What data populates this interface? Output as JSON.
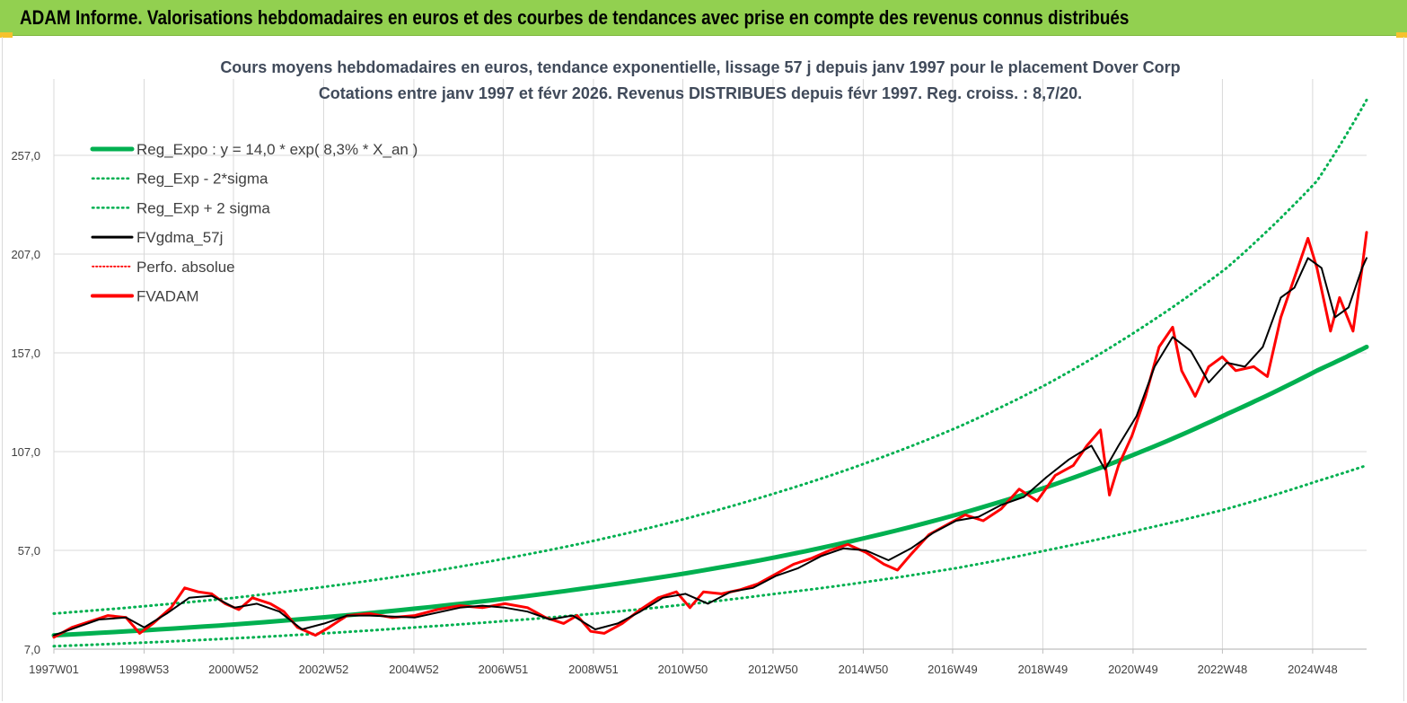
{
  "header": {
    "title": "ADAM Informe. Valorisations hebdomadaires en euros et des courbes de tendances avec prise en compte des revenus connus distribués"
  },
  "colors": {
    "header_bg": "#92d050",
    "reg_expo": "#00b050",
    "fv_adam": "#ff0000",
    "fvgdma": "#000000",
    "perfo": "#ff0000",
    "grid": "#d9d9d9"
  },
  "chart_data": {
    "type": "line",
    "title": "Cours moyens hebdomadaires en euros, tendance exponentielle, lissage 57 j depuis janv 1997 pour le placement Dover Corp",
    "subtitle": "Cotations entre janv 1997 et févr 2026. Revenus DISTRIBUES depuis févr 1997. Reg. croiss. : 8,7/20.",
    "xlabel": "",
    "ylabel": "",
    "x_range": [
      "1997W01",
      "2026W07"
    ],
    "ylim": [
      7.0,
      282.0
    ],
    "y_ticks": [
      "7,0",
      "57,0",
      "107,0",
      "157,0",
      "207,0",
      "257,0"
    ],
    "x_ticks": [
      "1997W01",
      "1998W53",
      "2000W52",
      "2002W52",
      "2004W52",
      "2006W51",
      "2008W51",
      "2010W50",
      "2012W50",
      "2014W50",
      "2016W49",
      "2018W49",
      "2020W49",
      "2022W48",
      "2024W48"
    ],
    "grid": true,
    "legend_position": "top-left",
    "legend": [
      {
        "label": "Reg_Expo : y = 14,0 * exp( 8,3% *  X_an )",
        "color": "#00b050",
        "style": "solid-thick"
      },
      {
        "label": "Reg_Exp - 2*sigma",
        "color": "#00b050",
        "style": "dotted"
      },
      {
        "label": "Reg_Exp + 2 sigma",
        "color": "#00b050",
        "style": "dotted"
      },
      {
        "label": "FVgdma_57j",
        "color": "#000000",
        "style": "solid"
      },
      {
        "label": "Perfo. absolue",
        "color": "#ff0000",
        "style": "dotted"
      },
      {
        "label": "FVADAM",
        "color": "#ff0000",
        "style": "solid-thick"
      }
    ],
    "trend": {
      "coef": 14.0,
      "growth_pct": 8.3
    },
    "series": [
      {
        "name": "Reg_Expo : y = 14,0 * exp( 8,3% *  X_an )",
        "x": [
          1997.0,
          2001.0,
          2005.0,
          2009.0,
          2013.0,
          2017.0,
          2019.0,
          2021.0,
          2023.0,
          2025.0,
          2026.1
        ],
        "y": [
          14.0,
          19.5,
          27.5,
          38.5,
          53.5,
          75.0,
          89.0,
          106.0,
          126.0,
          148.0,
          160.0
        ]
      },
      {
        "name": "Reg_Exp - 2*sigma",
        "x": [
          1997.0,
          2001.0,
          2005.0,
          2009.0,
          2013.0,
          2017.0,
          2019.0,
          2021.0,
          2023.0,
          2025.0,
          2026.1
        ],
        "y": [
          8.5,
          12.5,
          18.0,
          25.0,
          35.0,
          48.0,
          57.0,
          67.0,
          78.0,
          92.0,
          100.0
        ]
      },
      {
        "name": "Reg_Exp + 2 sigma",
        "x": [
          1997.0,
          2001.0,
          2005.0,
          2009.0,
          2013.0,
          2017.0,
          2019.0,
          2021.0,
          2023.0,
          2025.0,
          2026.1
        ],
        "y": [
          25.0,
          33.0,
          45.0,
          62.0,
          86.0,
          119.0,
          141.0,
          168.0,
          200.0,
          244.0,
          285.0
        ]
      },
      {
        "name": "FVgdma_57j",
        "x": [
          1997.0,
          1997.5,
          1998.0,
          1998.6,
          1999.0,
          1999.5,
          2000.0,
          2000.5,
          2001.0,
          2001.5,
          2002.0,
          2002.5,
          2003.0,
          2003.5,
          2004.0,
          2005.0,
          2006.0,
          2006.5,
          2007.0,
          2007.5,
          2008.0,
          2008.5,
          2009.0,
          2009.5,
          2010.0,
          2010.5,
          2011.0,
          2011.5,
          2012.0,
          2012.5,
          2013.0,
          2013.5,
          2014.0,
          2014.5,
          2015.0,
          2015.5,
          2016.0,
          2016.5,
          2017.0,
          2017.5,
          2018.0,
          2018.5,
          2019.0,
          2019.5,
          2020.0,
          2020.3,
          2020.6,
          2021.0,
          2021.4,
          2021.8,
          2022.2,
          2022.6,
          2023.0,
          2023.4,
          2023.8,
          2024.2,
          2024.5,
          2024.8,
          2025.1,
          2025.4,
          2025.7,
          2026.0,
          2026.1
        ],
        "y": [
          14.0,
          18.0,
          22.0,
          23.0,
          18.0,
          25.0,
          33.0,
          34.0,
          28.0,
          30.0,
          26.0,
          17.0,
          20.0,
          24.0,
          24.0,
          23.0,
          28.0,
          29.0,
          28.0,
          26.0,
          22.0,
          24.0,
          17.0,
          20.0,
          26.0,
          33.0,
          35.0,
          30.0,
          36.0,
          38.0,
          44.0,
          48.0,
          54.0,
          58.0,
          57.0,
          52.0,
          58.0,
          66.0,
          72.0,
          74.0,
          80.0,
          84.0,
          94.0,
          103.0,
          110.0,
          98.0,
          110.0,
          125.0,
          150.0,
          165.0,
          158.0,
          142.0,
          152.0,
          150.0,
          160.0,
          185.0,
          190.0,
          205.0,
          200.0,
          175.0,
          180.0,
          200.0,
          205.0
        ]
      },
      {
        "name": "FVADAM",
        "x": [
          1997.0,
          1997.4,
          1997.8,
          1998.2,
          1998.6,
          1998.9,
          1999.2,
          1999.6,
          1999.9,
          2000.2,
          2000.5,
          2000.8,
          2001.1,
          2001.4,
          2001.8,
          2002.1,
          2002.4,
          2002.8,
          2003.1,
          2003.5,
          2004.0,
          2004.5,
          2005.0,
          2005.5,
          2006.0,
          2006.5,
          2007.0,
          2007.5,
          2007.9,
          2008.3,
          2008.6,
          2008.9,
          2009.2,
          2009.6,
          2010.0,
          2010.4,
          2010.8,
          2011.1,
          2011.4,
          2011.8,
          2012.2,
          2012.6,
          2013.0,
          2013.4,
          2013.8,
          2014.2,
          2014.6,
          2015.0,
          2015.4,
          2015.7,
          2016.0,
          2016.4,
          2016.8,
          2017.2,
          2017.6,
          2018.0,
          2018.4,
          2018.8,
          2019.2,
          2019.6,
          2019.9,
          2020.2,
          2020.4,
          2020.6,
          2020.9,
          2021.2,
          2021.5,
          2021.8,
          2022.0,
          2022.3,
          2022.6,
          2022.9,
          2023.2,
          2023.6,
          2023.9,
          2024.2,
          2024.5,
          2024.8,
          2025.0,
          2025.3,
          2025.5,
          2025.8,
          2026.0,
          2026.1
        ],
        "y": [
          13.0,
          18.0,
          21.0,
          24.0,
          23.0,
          15.0,
          20.0,
          28.0,
          38.0,
          36.0,
          35.0,
          30.0,
          27.0,
          33.0,
          30.0,
          26.0,
          18.0,
          14.0,
          18.0,
          24.0,
          25.0,
          23.0,
          24.0,
          27.0,
          29.0,
          28.0,
          30.0,
          28.0,
          23.0,
          20.0,
          24.0,
          16.0,
          15.0,
          20.0,
          27.0,
          33.0,
          36.0,
          28.0,
          36.0,
          35.0,
          37.0,
          40.0,
          45.0,
          50.0,
          53.0,
          57.0,
          60.0,
          56.0,
          50.0,
          47.0,
          55.0,
          65.0,
          70.0,
          75.0,
          72.0,
          78.0,
          88.0,
          82.0,
          95.0,
          100.0,
          110.0,
          118.0,
          85.0,
          100.0,
          115.0,
          135.0,
          160.0,
          170.0,
          148.0,
          135.0,
          150.0,
          155.0,
          148.0,
          150.0,
          145.0,
          175.0,
          195.0,
          215.0,
          200.0,
          168.0,
          185.0,
          168.0,
          200.0,
          218.0
        ]
      }
    ]
  }
}
